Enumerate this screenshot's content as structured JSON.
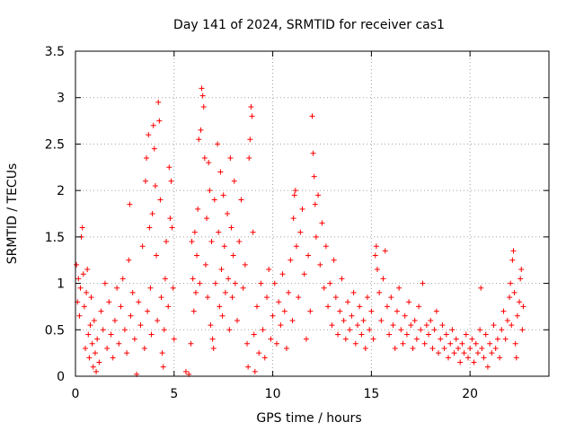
{
  "chart_data": {
    "type": "scatter",
    "title": "Day 141 of 2024, SRMTID for receiver cas1",
    "xlabel": "GPS time / hours",
    "ylabel": "SRMTID / TECUs",
    "xlim": [
      0,
      24
    ],
    "ylim": [
      0,
      3.5
    ],
    "xticks": [
      0,
      5,
      10,
      15,
      20
    ],
    "xtick_labels": [
      "0",
      "5",
      "10",
      "15",
      "20"
    ],
    "yticks": [
      0,
      0.5,
      1,
      1.5,
      2,
      2.5,
      3,
      3.5
    ],
    "ytick_labels": [
      "0",
      "0.5",
      "1",
      "1.5",
      "2",
      "2.5",
      "3",
      "3.5"
    ],
    "grid": true,
    "marker": "+",
    "color": "#ff0000",
    "series": [
      {
        "name": "SRMTID",
        "points": [
          [
            0.05,
            1.2
          ],
          [
            0.1,
            0.8
          ],
          [
            0.15,
            1.05
          ],
          [
            0.2,
            0.65
          ],
          [
            0.25,
            0.95
          ],
          [
            0.3,
            1.5
          ],
          [
            0.35,
            1.6
          ],
          [
            0.4,
            1.1
          ],
          [
            0.45,
            0.75
          ],
          [
            0.5,
            0.3
          ],
          [
            0.55,
            0.9
          ],
          [
            0.6,
            1.15
          ],
          [
            0.65,
            0.45
          ],
          [
            0.7,
            0.2
          ],
          [
            0.75,
            0.55
          ],
          [
            0.8,
            0.85
          ],
          [
            0.85,
            0.35
          ],
          [
            0.9,
            0.1
          ],
          [
            0.95,
            0.6
          ],
          [
            1.0,
            0.25
          ],
          [
            1.05,
            0.05
          ],
          [
            1.1,
            0.4
          ],
          [
            1.2,
            0.15
          ],
          [
            1.3,
            0.7
          ],
          [
            1.4,
            0.5
          ],
          [
            1.5,
            1.0
          ],
          [
            1.6,
            0.3
          ],
          [
            1.7,
            0.8
          ],
          [
            1.8,
            0.45
          ],
          [
            1.9,
            0.2
          ],
          [
            2.0,
            0.6
          ],
          [
            2.1,
            0.95
          ],
          [
            2.2,
            0.35
          ],
          [
            2.3,
            0.75
          ],
          [
            2.4,
            1.05
          ],
          [
            2.5,
            0.5
          ],
          [
            2.6,
            0.25
          ],
          [
            2.7,
            1.25
          ],
          [
            2.75,
            1.85
          ],
          [
            2.8,
            0.65
          ],
          [
            2.9,
            0.9
          ],
          [
            3.0,
            0.4
          ],
          [
            3.1,
            0.02
          ],
          [
            3.2,
            0.8
          ],
          [
            3.3,
            0.55
          ],
          [
            3.4,
            1.4
          ],
          [
            3.5,
            0.3
          ],
          [
            3.55,
            2.1
          ],
          [
            3.6,
            2.35
          ],
          [
            3.65,
            0.7
          ],
          [
            3.7,
            2.6
          ],
          [
            3.75,
            1.6
          ],
          [
            3.8,
            0.95
          ],
          [
            3.85,
            0.45
          ],
          [
            3.9,
            1.75
          ],
          [
            3.95,
            2.7
          ],
          [
            4.0,
            2.45
          ],
          [
            4.05,
            2.05
          ],
          [
            4.1,
            1.3
          ],
          [
            4.15,
            0.6
          ],
          [
            4.2,
            2.95
          ],
          [
            4.25,
            2.75
          ],
          [
            4.3,
            1.9
          ],
          [
            4.35,
            0.85
          ],
          [
            4.4,
            0.25
          ],
          [
            4.45,
            0.1
          ],
          [
            4.5,
            0.5
          ],
          [
            4.55,
            1.05
          ],
          [
            4.6,
            1.45
          ],
          [
            4.7,
            0.75
          ],
          [
            4.75,
            2.25
          ],
          [
            4.8,
            1.7
          ],
          [
            4.85,
            2.1
          ],
          [
            4.9,
            1.6
          ],
          [
            4.95,
            0.95
          ],
          [
            5.0,
            0.4
          ],
          [
            5.6,
            0.05
          ],
          [
            5.75,
            0.02
          ],
          [
            5.85,
            0.35
          ],
          [
            5.9,
            1.45
          ],
          [
            5.95,
            1.05
          ],
          [
            6.0,
            0.7
          ],
          [
            6.05,
            1.55
          ],
          [
            6.1,
            0.9
          ],
          [
            6.15,
            1.3
          ],
          [
            6.2,
            1.8
          ],
          [
            6.25,
            2.55
          ],
          [
            6.3,
            1.0
          ],
          [
            6.35,
            2.65
          ],
          [
            6.4,
            3.1
          ],
          [
            6.45,
            3.02
          ],
          [
            6.5,
            2.9
          ],
          [
            6.55,
            2.35
          ],
          [
            6.6,
            1.2
          ],
          [
            6.65,
            1.7
          ],
          [
            6.7,
            0.85
          ],
          [
            6.75,
            2.3
          ],
          [
            6.8,
            2.0
          ],
          [
            6.85,
            0.55
          ],
          [
            6.9,
            1.45
          ],
          [
            6.95,
            0.4
          ],
          [
            7.0,
            0.3
          ],
          [
            7.05,
            1.9
          ],
          [
            7.1,
            1.0
          ],
          [
            7.2,
            2.5
          ],
          [
            7.25,
            1.55
          ],
          [
            7.3,
            0.75
          ],
          [
            7.35,
            2.2
          ],
          [
            7.4,
            1.15
          ],
          [
            7.45,
            0.65
          ],
          [
            7.5,
            1.95
          ],
          [
            7.55,
            1.4
          ],
          [
            7.6,
            0.9
          ],
          [
            7.7,
            1.75
          ],
          [
            7.75,
            1.05
          ],
          [
            7.8,
            0.5
          ],
          [
            7.85,
            2.35
          ],
          [
            7.9,
            1.6
          ],
          [
            7.95,
            0.85
          ],
          [
            8.0,
            1.3
          ],
          [
            8.05,
            2.1
          ],
          [
            8.1,
            1.0
          ],
          [
            8.2,
            0.6
          ],
          [
            8.3,
            1.45
          ],
          [
            8.4,
            1.9
          ],
          [
            8.5,
            0.95
          ],
          [
            8.6,
            1.2
          ],
          [
            8.7,
            0.35
          ],
          [
            8.75,
            0.1
          ],
          [
            8.8,
            2.35
          ],
          [
            8.85,
            2.55
          ],
          [
            8.9,
            2.9
          ],
          [
            8.95,
            2.8
          ],
          [
            9.0,
            1.55
          ],
          [
            9.05,
            0.45
          ],
          [
            9.1,
            0.05
          ],
          [
            9.2,
            0.75
          ],
          [
            9.3,
            0.25
          ],
          [
            9.4,
            1.0
          ],
          [
            9.5,
            0.5
          ],
          [
            9.6,
            0.2
          ],
          [
            9.7,
            0.85
          ],
          [
            9.8,
            1.15
          ],
          [
            9.9,
            0.4
          ],
          [
            10.0,
            0.65
          ],
          [
            10.1,
            1.0
          ],
          [
            10.2,
            0.35
          ],
          [
            10.3,
            0.8
          ],
          [
            10.4,
            0.55
          ],
          [
            10.5,
            1.1
          ],
          [
            10.6,
            0.7
          ],
          [
            10.7,
            0.3
          ],
          [
            10.8,
            0.9
          ],
          [
            10.9,
            1.25
          ],
          [
            11.0,
            0.6
          ],
          [
            11.05,
            1.7
          ],
          [
            11.1,
            1.95
          ],
          [
            11.15,
            2.0
          ],
          [
            11.2,
            1.4
          ],
          [
            11.3,
            0.85
          ],
          [
            11.4,
            1.55
          ],
          [
            11.5,
            1.8
          ],
          [
            11.6,
            1.1
          ],
          [
            11.7,
            0.4
          ],
          [
            11.8,
            1.3
          ],
          [
            11.9,
            0.7
          ],
          [
            12.0,
            2.8
          ],
          [
            12.05,
            2.4
          ],
          [
            12.1,
            2.15
          ],
          [
            12.15,
            1.85
          ],
          [
            12.2,
            1.5
          ],
          [
            12.3,
            1.95
          ],
          [
            12.4,
            1.2
          ],
          [
            12.5,
            1.65
          ],
          [
            12.6,
            0.95
          ],
          [
            12.7,
            1.4
          ],
          [
            12.8,
            0.75
          ],
          [
            12.9,
            1.0
          ],
          [
            13.0,
            0.55
          ],
          [
            13.1,
            1.25
          ],
          [
            13.2,
            0.85
          ],
          [
            13.3,
            0.45
          ],
          [
            13.4,
            0.7
          ],
          [
            13.5,
            1.05
          ],
          [
            13.6,
            0.6
          ],
          [
            13.7,
            0.4
          ],
          [
            13.8,
            0.8
          ],
          [
            13.9,
            0.5
          ],
          [
            14.0,
            0.65
          ],
          [
            14.1,
            0.9
          ],
          [
            14.2,
            0.35
          ],
          [
            14.3,
            0.55
          ],
          [
            14.4,
            0.75
          ],
          [
            14.5,
            0.45
          ],
          [
            14.6,
            0.6
          ],
          [
            14.7,
            0.3
          ],
          [
            14.8,
            0.85
          ],
          [
            14.9,
            0.5
          ],
          [
            15.0,
            0.7
          ],
          [
            15.1,
            0.4
          ],
          [
            15.2,
            1.3
          ],
          [
            15.25,
            1.4
          ],
          [
            15.3,
            1.15
          ],
          [
            15.4,
            0.9
          ],
          [
            15.5,
            0.6
          ],
          [
            15.6,
            1.05
          ],
          [
            15.7,
            1.35
          ],
          [
            15.8,
            0.75
          ],
          [
            15.9,
            0.45
          ],
          [
            16.0,
            0.85
          ],
          [
            16.1,
            0.55
          ],
          [
            16.2,
            0.3
          ],
          [
            16.3,
            0.7
          ],
          [
            16.4,
            0.95
          ],
          [
            16.5,
            0.5
          ],
          [
            16.6,
            0.35
          ],
          [
            16.7,
            0.65
          ],
          [
            16.8,
            0.45
          ],
          [
            16.9,
            0.8
          ],
          [
            17.0,
            0.55
          ],
          [
            17.1,
            0.3
          ],
          [
            17.2,
            0.6
          ],
          [
            17.3,
            0.4
          ],
          [
            17.4,
            0.75
          ],
          [
            17.5,
            0.5
          ],
          [
            17.6,
            1.0
          ],
          [
            17.7,
            0.35
          ],
          [
            17.8,
            0.55
          ],
          [
            17.9,
            0.45
          ],
          [
            18.0,
            0.6
          ],
          [
            18.1,
            0.3
          ],
          [
            18.2,
            0.5
          ],
          [
            18.3,
            0.7
          ],
          [
            18.4,
            0.25
          ],
          [
            18.5,
            0.4
          ],
          [
            18.6,
            0.55
          ],
          [
            18.7,
            0.3
          ],
          [
            18.8,
            0.45
          ],
          [
            18.9,
            0.2
          ],
          [
            19.0,
            0.35
          ],
          [
            19.1,
            0.5
          ],
          [
            19.2,
            0.25
          ],
          [
            19.3,
            0.4
          ],
          [
            19.4,
            0.3
          ],
          [
            19.5,
            0.15
          ],
          [
            19.6,
            0.35
          ],
          [
            19.7,
            0.25
          ],
          [
            19.8,
            0.45
          ],
          [
            19.9,
            0.2
          ],
          [
            20.0,
            0.3
          ],
          [
            20.1,
            0.4
          ],
          [
            20.2,
            0.15
          ],
          [
            20.3,
            0.35
          ],
          [
            20.4,
            0.25
          ],
          [
            20.5,
            0.5
          ],
          [
            20.55,
            0.95
          ],
          [
            20.6,
            0.3
          ],
          [
            20.7,
            0.2
          ],
          [
            20.8,
            0.45
          ],
          [
            20.9,
            0.1
          ],
          [
            21.0,
            0.35
          ],
          [
            21.1,
            0.25
          ],
          [
            21.2,
            0.55
          ],
          [
            21.3,
            0.3
          ],
          [
            21.4,
            0.4
          ],
          [
            21.5,
            0.2
          ],
          [
            21.6,
            0.5
          ],
          [
            21.7,
            0.7
          ],
          [
            21.8,
            0.4
          ],
          [
            21.9,
            0.6
          ],
          [
            22.0,
            0.85
          ],
          [
            22.05,
            1.0
          ],
          [
            22.1,
            0.55
          ],
          [
            22.15,
            1.25
          ],
          [
            22.2,
            1.35
          ],
          [
            22.25,
            0.9
          ],
          [
            22.3,
            0.35
          ],
          [
            22.35,
            0.2
          ],
          [
            22.4,
            0.65
          ],
          [
            22.5,
            0.8
          ],
          [
            22.55,
            1.05
          ],
          [
            22.6,
            1.15
          ],
          [
            22.65,
            0.5
          ],
          [
            22.7,
            0.75
          ]
        ]
      }
    ]
  }
}
